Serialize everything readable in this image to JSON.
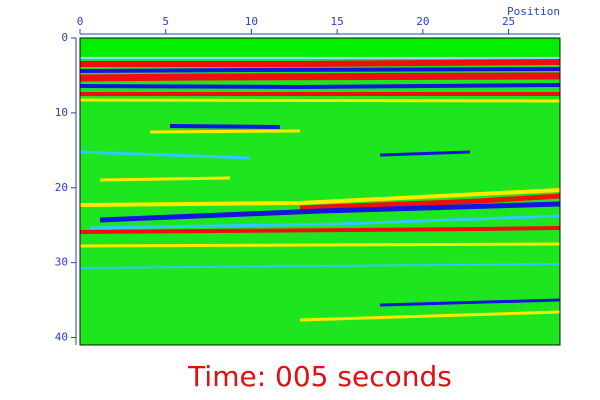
{
  "chart_data": {
    "type": "image",
    "x_label": "Position",
    "xlim": [
      0,
      28
    ],
    "xticks": [
      0,
      5,
      10,
      15,
      20,
      25
    ],
    "ylim": [
      0,
      41
    ],
    "yticks": [
      0,
      10,
      20,
      30,
      40
    ],
    "caption": "Time: 005 seconds"
  }
}
